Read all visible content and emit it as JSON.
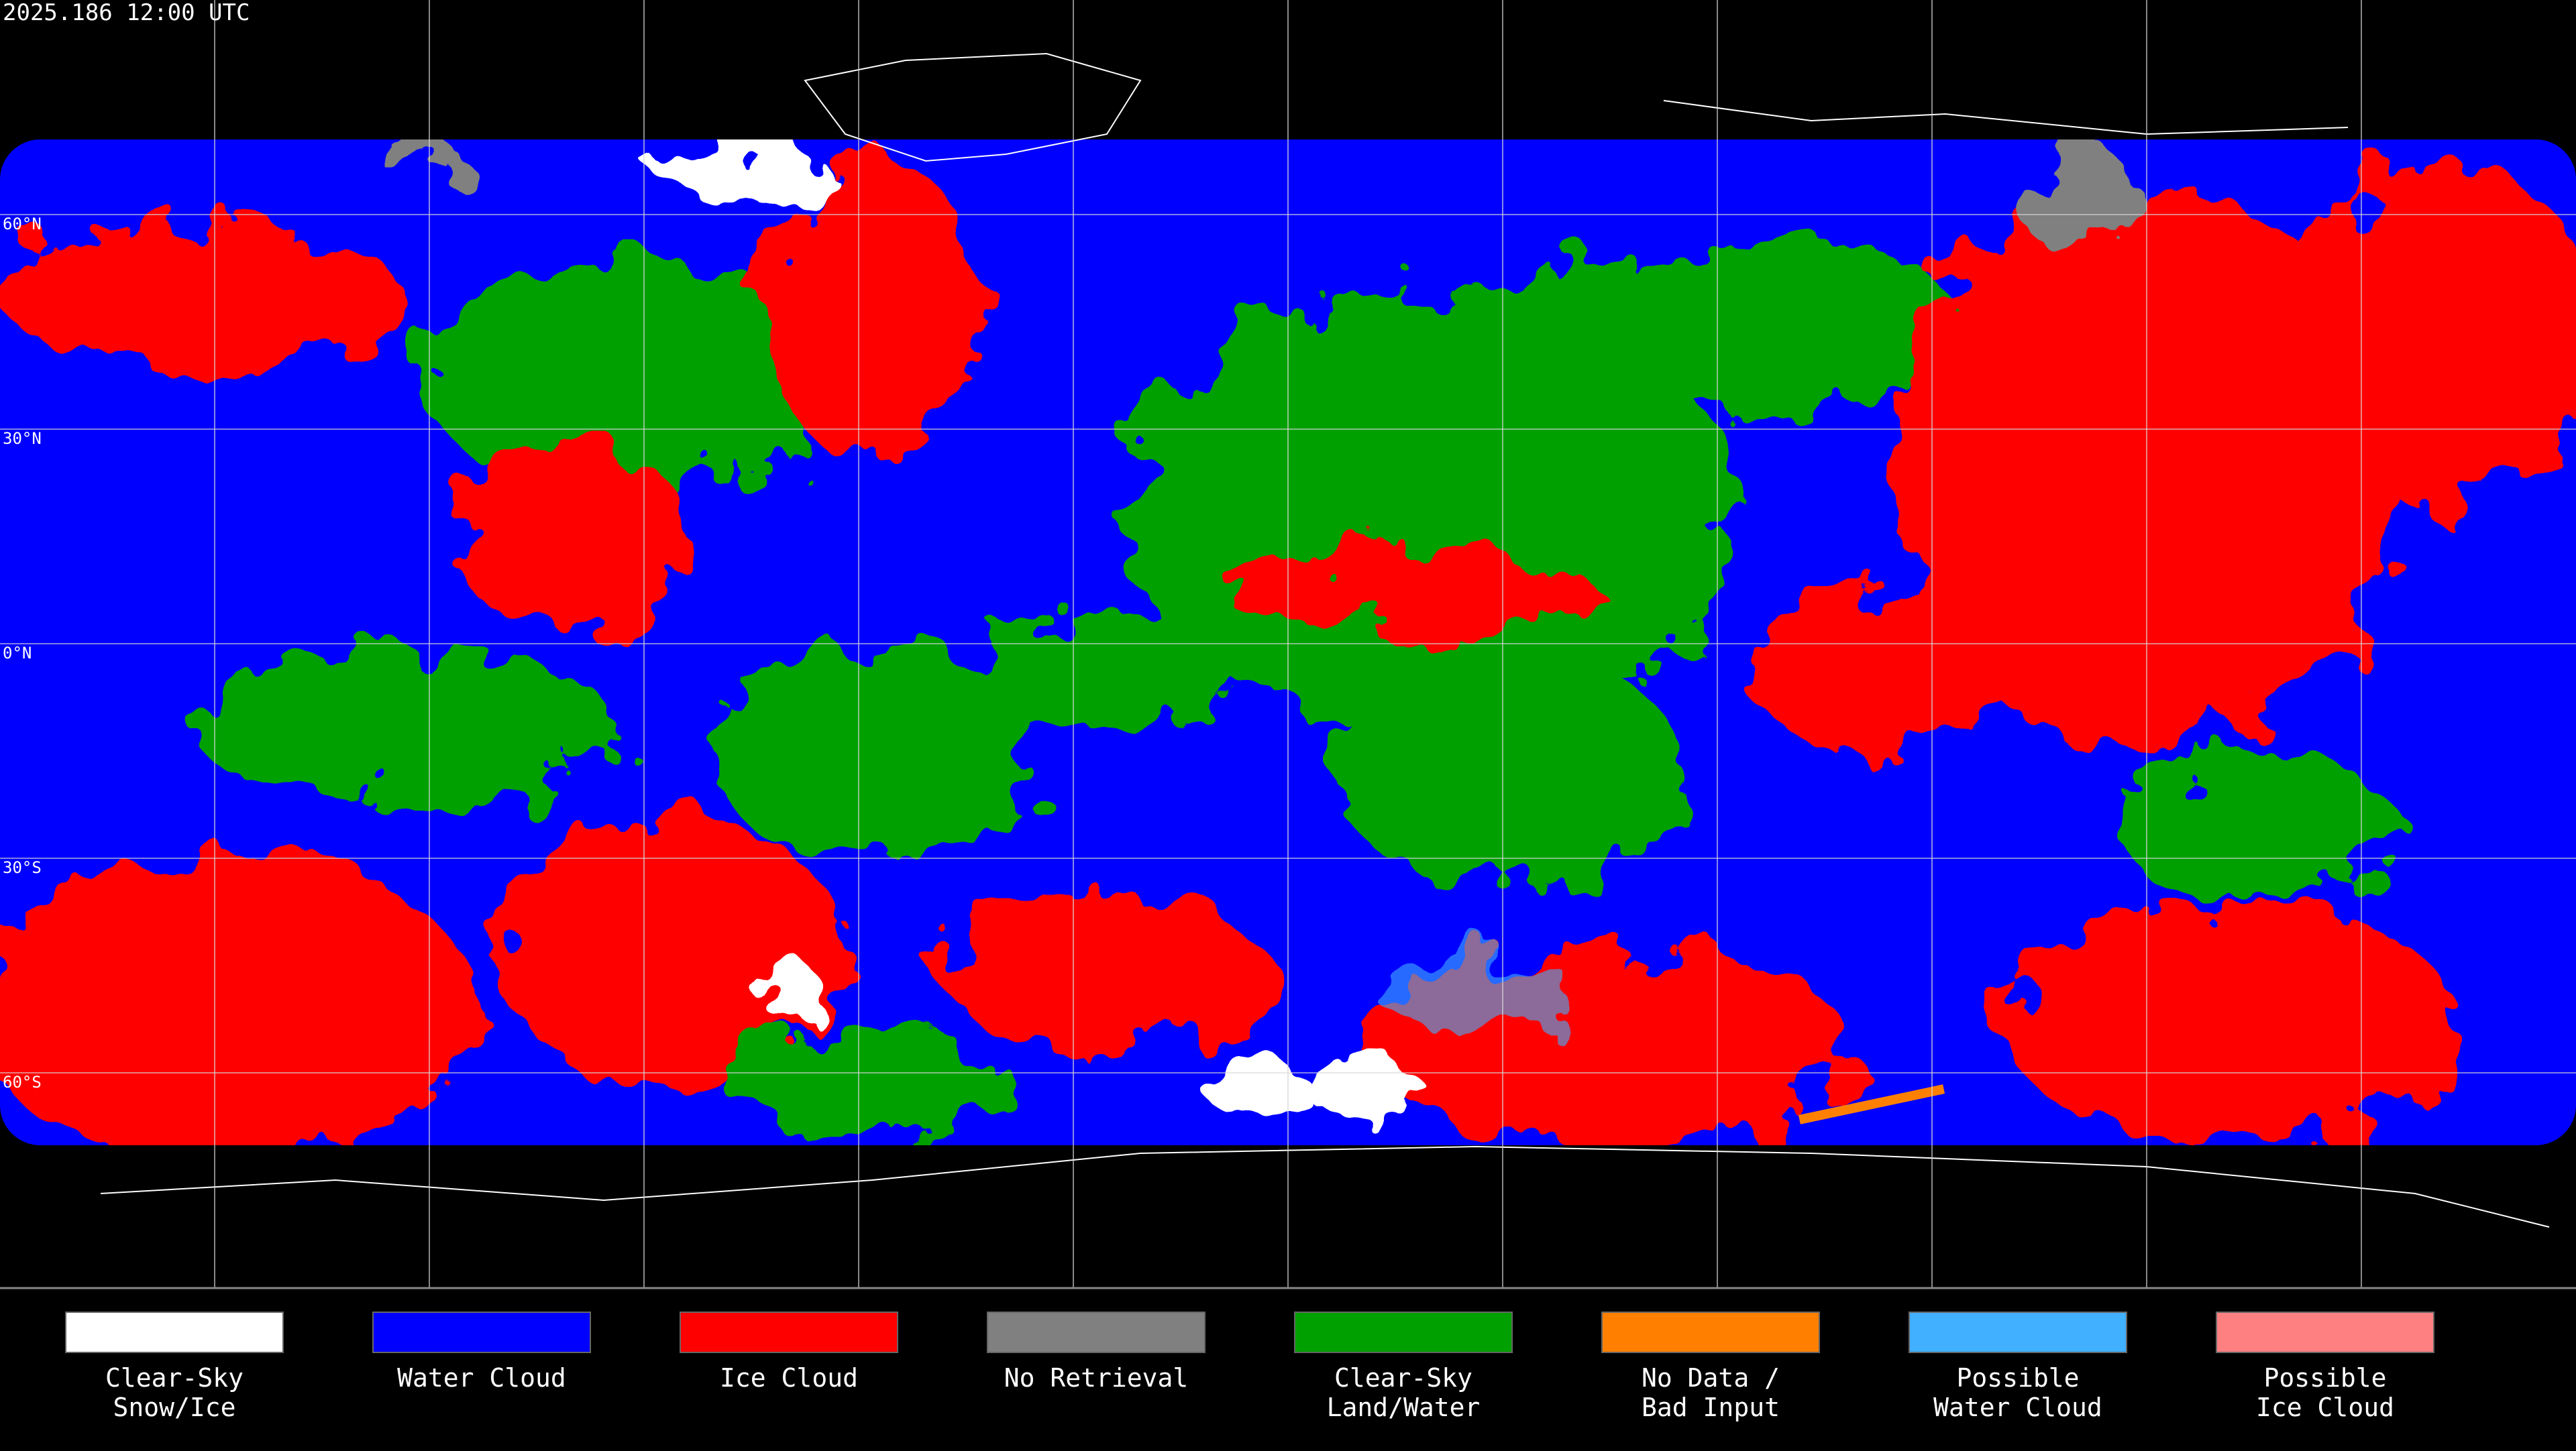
{
  "header": {
    "timestamp": "2025.186 12:00 UTC"
  },
  "grid": {
    "lat_labels": [
      "60°N",
      "30°N",
      "0°N",
      "30°S",
      "60°S"
    ]
  },
  "legend": [
    {
      "lines": [
        "Clear-Sky",
        "Snow/Ice"
      ],
      "color": "#ffffff"
    },
    {
      "lines": [
        "Water Cloud"
      ],
      "color": "#0000ff"
    },
    {
      "lines": [
        "Ice Cloud"
      ],
      "color": "#ff0000"
    },
    {
      "lines": [
        "No Retrieval"
      ],
      "color": "#808080"
    },
    {
      "lines": [
        "Clear-Sky",
        "Land/Water"
      ],
      "color": "#00a000"
    },
    {
      "lines": [
        "No Data /",
        "Bad Input"
      ],
      "color": "#ff8000"
    },
    {
      "lines": [
        "Possible",
        "Water Cloud"
      ],
      "color": "#40b0ff"
    },
    {
      "lines": [
        "Possible",
        "Ice Cloud"
      ],
      "color": "#ff8080"
    }
  ]
}
